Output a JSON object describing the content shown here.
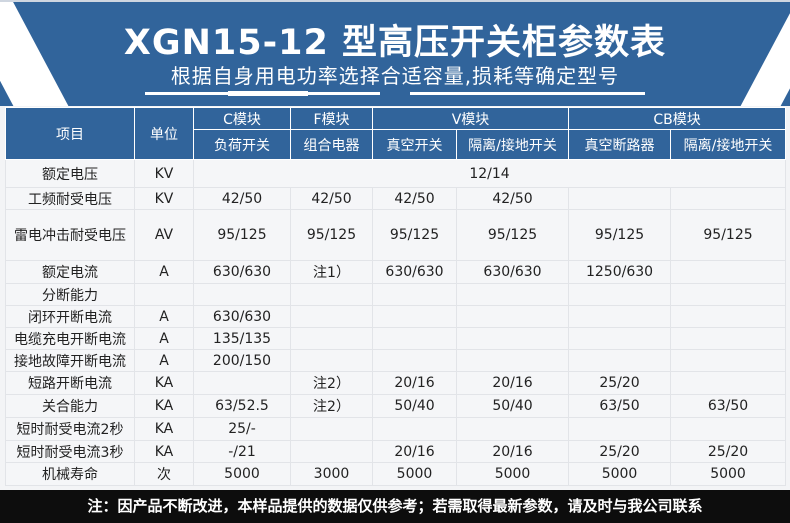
{
  "header": {
    "title": "XGN15-12 型高压开关柜参数表",
    "subtitle": "根据自身用电功率选择合适容量,损耗等确定型号"
  },
  "table": {
    "col_item": "项目",
    "col_unit": "单位",
    "groups": [
      "C模块",
      "F模块",
      "V模块",
      "CB模块"
    ],
    "subcols": [
      "负荷开关",
      "组合电器",
      "真空开关",
      "隔离/接地开关",
      "真空断路器",
      "隔离/接地开关"
    ],
    "rows": [
      {
        "item": "额定电压",
        "unit": "KV",
        "merged": "12/14"
      },
      {
        "item": "工频耐受电压",
        "unit": "KV",
        "values": [
          "42/50",
          "42/50",
          "42/50",
          "42/50",
          "",
          ""
        ]
      },
      {
        "item": "雷电冲击耐受电压",
        "unit": "AV",
        "values": [
          "95/125",
          "95/125",
          "95/125",
          "95/125",
          "95/125",
          "95/125"
        ]
      },
      {
        "item": "额定电流",
        "unit": "A",
        "values": [
          "630/630",
          "注1）",
          "630/630",
          "630/630",
          "1250/630",
          ""
        ]
      },
      {
        "item": "分断能力",
        "unit": "",
        "values": [
          "",
          "",
          "",
          "",
          "",
          ""
        ]
      },
      {
        "item": "闭环开断电流",
        "unit": "A",
        "values": [
          "630/630",
          "",
          "",
          "",
          "",
          ""
        ]
      },
      {
        "item": "电缆充电开断电流",
        "unit": "A",
        "values": [
          "135/135",
          "",
          "",
          "",
          "",
          ""
        ]
      },
      {
        "item": "接地故障开断电流",
        "unit": "A",
        "values": [
          "200/150",
          "",
          "",
          "",
          "",
          ""
        ]
      },
      {
        "item": "短路开断电流",
        "unit": "KA",
        "values": [
          "",
          "注2）",
          "20/16",
          "20/16",
          "25/20",
          ""
        ]
      },
      {
        "item": "关合能力",
        "unit": "KA",
        "values": [
          "63/52.5",
          "注2）",
          "50/40",
          "50/40",
          "63/50",
          "63/50"
        ]
      },
      {
        "item": "短时耐受电流2秒",
        "unit": "KA",
        "values": [
          "25/-",
          "",
          "",
          "",
          "",
          ""
        ]
      },
      {
        "item": "短时耐受电流3秒",
        "unit": "KA",
        "values": [
          "-/21",
          "",
          "20/16",
          "20/16",
          "25/20",
          "25/20"
        ]
      },
      {
        "item": "机械寿命",
        "unit": "次",
        "values": [
          "5000",
          "3000",
          "5000",
          "5000",
          "5000",
          "5000"
        ]
      }
    ]
  },
  "footer": {
    "note": "注：因产品不断改进，本样品提供的数据仅供参考；若需取得最新参数，请及时与我公司联系"
  },
  "colors": {
    "header_blue": "#31649b",
    "footer_bg": "#0d0d0d"
  }
}
